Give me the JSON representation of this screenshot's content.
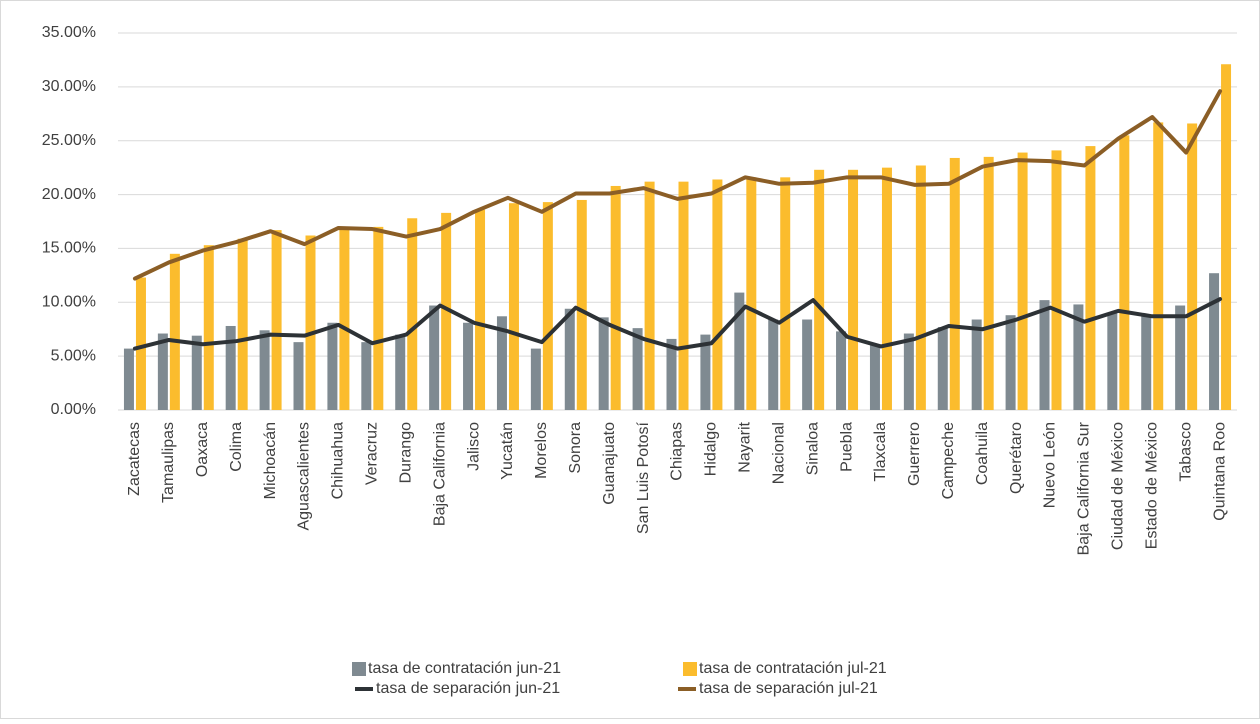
{
  "chart_data": {
    "type": "bar",
    "categories": [
      "Zacatecas",
      "Tamaulipas",
      "Oaxaca",
      "Colima",
      "Michoacán",
      "Aguascalientes",
      "Chihuahua",
      "Veracruz",
      "Durango",
      "Baja California",
      "Jalisco",
      "Yucatán",
      "Morelos",
      "Sonora",
      "Guanajuato",
      "San Luis Potosí",
      "Chiapas",
      "Hidalgo",
      "Nayarit",
      "Nacional",
      "Sinaloa",
      "Puebla",
      "Tlaxcala",
      "Guerrero",
      "Campeche",
      "Coahuila",
      "Querétaro",
      "Nuevo León",
      "Baja California Sur",
      "Ciudad de México",
      "Estado de México",
      "Tabasco",
      "Quintana Roo"
    ],
    "series": [
      {
        "name": "tasa de contratación jun-21",
        "type": "bar",
        "color": "#7f8a91",
        "values": [
          5.7,
          7.1,
          6.9,
          7.8,
          7.4,
          6.3,
          8.1,
          6.3,
          7.0,
          9.7,
          8.1,
          8.7,
          5.7,
          9.4,
          8.6,
          7.6,
          6.6,
          7.0,
          10.9,
          8.4,
          8.4,
          7.3,
          6.0,
          7.1,
          7.7,
          8.4,
          8.8,
          10.2,
          9.8,
          9.0,
          8.8,
          9.7,
          12.7
        ]
      },
      {
        "name": "tasa de contratación jul-21",
        "type": "bar",
        "color": "#fbbc2d",
        "values": [
          12.3,
          14.5,
          15.3,
          15.9,
          16.7,
          16.2,
          16.9,
          17.0,
          17.8,
          18.3,
          18.6,
          19.2,
          19.3,
          19.5,
          20.8,
          21.2,
          21.2,
          21.4,
          21.6,
          21.6,
          22.3,
          22.3,
          22.5,
          22.7,
          23.4,
          23.5,
          23.9,
          24.1,
          24.5,
          25.5,
          26.7,
          26.6,
          32.1
        ]
      },
      {
        "name": "tasa de separación jun-21",
        "type": "line",
        "color": "#2d3236",
        "values": [
          5.7,
          6.5,
          6.1,
          6.4,
          7.0,
          6.9,
          7.9,
          6.2,
          7.0,
          9.7,
          8.1,
          7.3,
          6.3,
          9.5,
          7.9,
          6.6,
          5.7,
          6.2,
          9.6,
          8.1,
          10.2,
          6.8,
          5.9,
          6.6,
          7.8,
          7.5,
          8.4,
          9.5,
          8.2,
          9.2,
          8.7,
          8.7,
          10.3
        ]
      },
      {
        "name": "tasa de separación jul-21",
        "type": "line",
        "color": "#8b5e26",
        "values": [
          12.2,
          13.7,
          14.8,
          15.6,
          16.6,
          15.4,
          16.9,
          16.8,
          16.1,
          16.8,
          18.4,
          19.7,
          18.4,
          20.1,
          20.1,
          20.6,
          19.6,
          20.1,
          21.6,
          21.0,
          21.1,
          21.6,
          21.6,
          20.9,
          21.0,
          22.6,
          23.2,
          23.1,
          22.7,
          25.2,
          27.2,
          23.9,
          29.6
        ]
      }
    ],
    "ylim": [
      0,
      35
    ],
    "yticks": [
      {
        "value": 0,
        "label": "0.00%"
      },
      {
        "value": 5,
        "label": "5.00%"
      },
      {
        "value": 10,
        "label": "10.00%"
      },
      {
        "value": 15,
        "label": "15.00%"
      },
      {
        "value": 20,
        "label": "20.00%"
      },
      {
        "value": 25,
        "label": "25.00%"
      },
      {
        "value": 30,
        "label": "30.00%"
      },
      {
        "value": 35,
        "label": "35.00%"
      }
    ],
    "grid": true,
    "legend": "bottom"
  }
}
